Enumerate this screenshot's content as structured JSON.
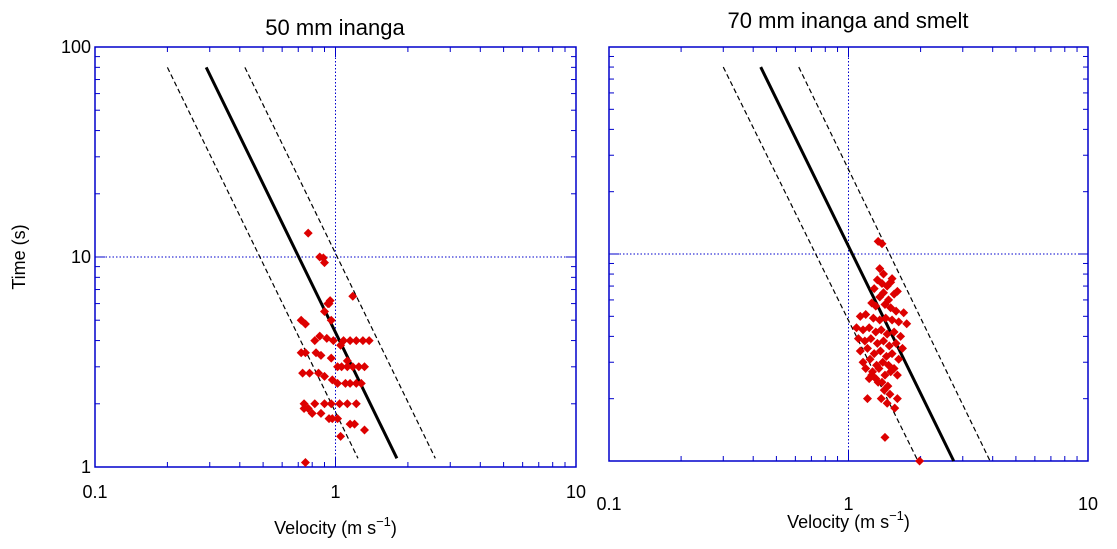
{
  "chart_data": [
    {
      "type": "scatter",
      "title": "50 mm inanga",
      "xlabel": "Velocity (m s",
      "xlabel_sup": "−1",
      "xlabel_end": ")",
      "ylabel": "Time (s)",
      "xscale": "log",
      "yscale": "log",
      "xlim": [
        0.1,
        10
      ],
      "ylim": [
        1,
        100
      ],
      "xtick_labels": [
        "0.1",
        "1",
        "10"
      ],
      "ytick_labels": [
        "1",
        "10",
        "100"
      ],
      "reference_lines": {
        "x": 1,
        "y": 10
      },
      "fit_line": {
        "x": [
          0.29,
          1.8
        ],
        "y": [
          80,
          1.1
        ]
      },
      "lower_bound": {
        "x": [
          0.2,
          1.24
        ],
        "y": [
          80,
          1.1
        ]
      },
      "upper_bound": {
        "x": [
          0.42,
          2.6
        ],
        "y": [
          80,
          1.1
        ]
      },
      "points": {
        "x": [
          0.77,
          0.86,
          0.89,
          0.9,
          0.93,
          0.94,
          0.95,
          1.18,
          0.72,
          0.75,
          0.82,
          0.86,
          0.92,
          0.98,
          1.08,
          1.15,
          1.22,
          1.3,
          1.38,
          0.72,
          0.75,
          0.83,
          0.87,
          0.96,
          1.02,
          1.06,
          1.12,
          1.18,
          1.25,
          1.32,
          0.73,
          0.78,
          0.85,
          0.9,
          0.97,
          1.02,
          1.1,
          1.15,
          1.22,
          1.28,
          0.74,
          0.82,
          0.9,
          0.96,
          1.04,
          1.12,
          1.22,
          0.74,
          0.8,
          0.87,
          0.94,
          0.97,
          1.02,
          1.15,
          1.2,
          1.32,
          1.05,
          0.77,
          0.9,
          0.96,
          1.05,
          1.12,
          0.75
        ],
        "y": [
          13,
          10,
          9.9,
          9.4,
          6.0,
          6.0,
          6.2,
          6.5,
          5.0,
          4.8,
          4.0,
          4.2,
          4.1,
          4.0,
          4.0,
          4.0,
          4.0,
          4.0,
          4.0,
          3.5,
          3.5,
          3.5,
          3.4,
          3.3,
          3.0,
          3.0,
          3.0,
          3.0,
          3.0,
          3.0,
          2.8,
          2.8,
          2.8,
          2.7,
          2.6,
          2.5,
          2.5,
          2.5,
          2.5,
          2.5,
          2.0,
          2.0,
          2.0,
          2.0,
          2.0,
          2.0,
          2.0,
          1.9,
          1.8,
          1.8,
          1.7,
          1.7,
          1.7,
          1.6,
          1.6,
          1.5,
          1.4,
          1.9,
          5.5,
          5.0,
          3.8,
          3.2,
          1.05
        ]
      },
      "colors": {
        "frame": "#0000cc",
        "points": "#dd0000",
        "lines": "#000000"
      }
    },
    {
      "type": "scatter",
      "title": "70 mm inanga and smelt",
      "xlabel": "Velocity (m s",
      "xlabel_sup": "−1",
      "xlabel_end": ")",
      "ylabel": "",
      "xscale": "log",
      "yscale": "log",
      "xlim": [
        0.1,
        10
      ],
      "ylim": [
        1,
        100
      ],
      "xtick_labels": [
        "0.1",
        "1",
        "10"
      ],
      "ytick_labels": [],
      "reference_lines": {
        "x": 1,
        "y": 10
      },
      "fit_line": {
        "x": [
          0.43,
          2.75
        ],
        "y": [
          80,
          1.0
        ]
      },
      "lower_bound": {
        "x": [
          0.3,
          1.95
        ],
        "y": [
          80,
          1.0
        ]
      },
      "upper_bound": {
        "x": [
          0.62,
          3.9
        ],
        "y": [
          80,
          1.0
        ]
      },
      "points": {
        "x": [
          1.33,
          1.38,
          1.35,
          1.4,
          1.32,
          1.38,
          1.45,
          1.5,
          1.52,
          1.28,
          1.4,
          1.35,
          1.47,
          1.55,
          1.6,
          1.25,
          1.3,
          1.42,
          1.5,
          1.58,
          1.7,
          1.12,
          1.18,
          1.27,
          1.35,
          1.43,
          1.52,
          1.62,
          1.75,
          1.08,
          1.15,
          1.22,
          1.3,
          1.37,
          1.45,
          1.55,
          1.65,
          1.1,
          1.17,
          1.24,
          1.32,
          1.4,
          1.48,
          1.58,
          1.68,
          1.12,
          1.2,
          1.28,
          1.36,
          1.44,
          1.52,
          1.62,
          1.15,
          1.23,
          1.31,
          1.39,
          1.47,
          1.55,
          1.18,
          1.26,
          1.34,
          1.42,
          1.5,
          1.6,
          1.22,
          1.3,
          1.38,
          1.46,
          1.25,
          1.33,
          1.41,
          1.49,
          1.37,
          1.45,
          1.2,
          1.56,
          1.6,
          1.42,
          1.98
        ],
        "y": [
          11.5,
          11.2,
          8.5,
          8.0,
          7.5,
          7.2,
          7.0,
          7.3,
          7.6,
          6.8,
          6.5,
          6.2,
          6.0,
          6.4,
          6.6,
          5.8,
          5.6,
          5.7,
          5.5,
          5.3,
          5.2,
          5.0,
          5.1,
          4.9,
          4.8,
          4.9,
          4.8,
          4.7,
          4.6,
          4.4,
          4.3,
          4.4,
          4.2,
          4.3,
          4.1,
          4.2,
          4.0,
          3.9,
          3.8,
          3.9,
          3.7,
          3.8,
          3.6,
          3.7,
          3.5,
          3.4,
          3.5,
          3.3,
          3.4,
          3.2,
          3.3,
          3.1,
          3.0,
          3.1,
          2.9,
          3.0,
          2.9,
          2.8,
          2.8,
          2.7,
          2.8,
          2.6,
          2.7,
          2.6,
          2.5,
          2.5,
          2.4,
          2.3,
          2.6,
          2.4,
          2.2,
          2.1,
          2.0,
          1.9,
          2.0,
          1.8,
          2.0,
          1.3,
          1.0
        ]
      },
      "colors": {
        "frame": "#0000cc",
        "points": "#dd0000",
        "lines": "#000000"
      }
    }
  ]
}
